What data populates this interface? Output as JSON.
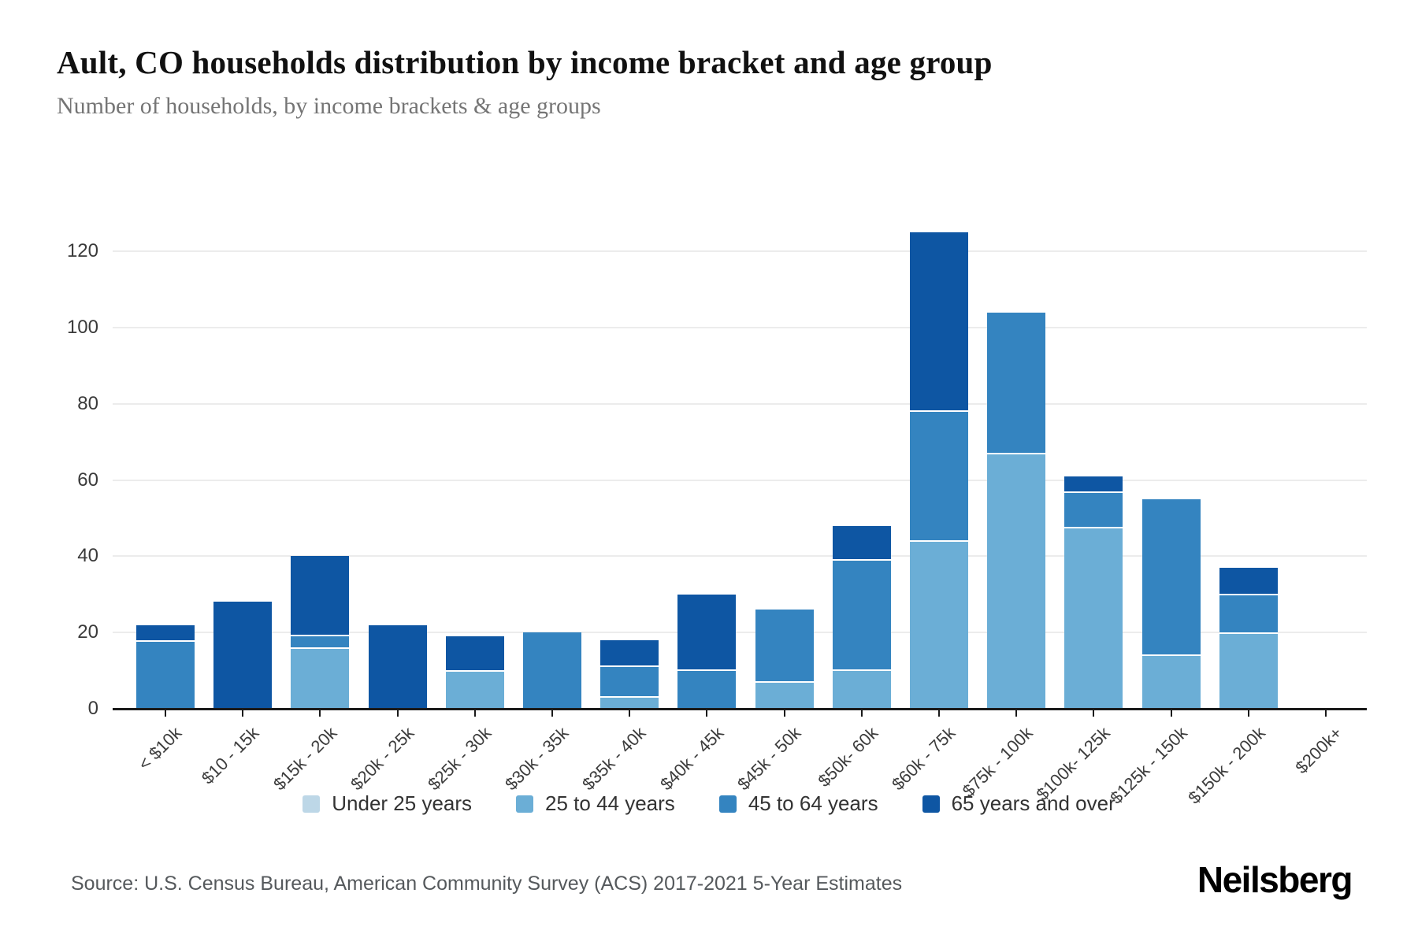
{
  "header": {
    "title": "Ault, CO households distribution by income bracket and age group",
    "subtitle": "Number of households, by income brackets & age groups"
  },
  "footer": {
    "source": "Source: U.S. Census Bureau, American Community Survey (ACS) 2017-2021 5-Year Estimates",
    "brand": "Neilsberg"
  },
  "chart_data": {
    "type": "bar",
    "stacked": true,
    "title": "Ault, CO households distribution by income bracket and age group",
    "subtitle": "Number of households, by income brackets & age groups",
    "xlabel": "",
    "ylabel": "",
    "ylim": [
      0,
      130
    ],
    "y_ticks": [
      0,
      20,
      40,
      60,
      80,
      100,
      120
    ],
    "grid": "horizontal",
    "legend_position": "bottom-center",
    "categories": [
      "< $10k",
      "$10 - 15k",
      "$15k - 20k",
      "$20k - 25k",
      "$25k - 30k",
      "$30k - 35k",
      "$35k - 40k",
      "$40k - 45k",
      "$45k - 50k",
      "$50k- 60k",
      "$60k - 75k",
      "$75k - 100k",
      "$100k- 125k",
      "$125k - 150k",
      "$150k - 200k",
      "$200k+"
    ],
    "series": [
      {
        "name": "Under 25 years",
        "color": "#bdd7e7",
        "values": [
          0,
          0,
          0,
          0,
          0,
          0,
          0,
          0,
          0,
          0,
          0,
          0,
          0,
          0,
          0,
          0
        ]
      },
      {
        "name": "25 to 44 years",
        "color": "#6baed6",
        "values": [
          0,
          0,
          16,
          0,
          10,
          0,
          3,
          0,
          7,
          10,
          44,
          67,
          48,
          14,
          20,
          0
        ]
      },
      {
        "name": "45 to 64 years",
        "color": "#3484c0",
        "values": [
          18,
          0,
          3,
          0,
          0,
          20,
          8,
          10,
          19,
          29,
          34,
          37,
          9,
          41,
          10,
          0
        ]
      },
      {
        "name": "65 years and over",
        "color": "#0e56a3",
        "values": [
          4,
          28,
          21,
          22,
          9,
          0,
          7,
          20,
          0,
          9,
          47,
          0,
          4,
          0,
          7,
          0
        ]
      }
    ],
    "totals": [
      22,
      28,
      40,
      22,
      19,
      20,
      18,
      30,
      26,
      48,
      125,
      104,
      61,
      55,
      37,
      0
    ]
  }
}
